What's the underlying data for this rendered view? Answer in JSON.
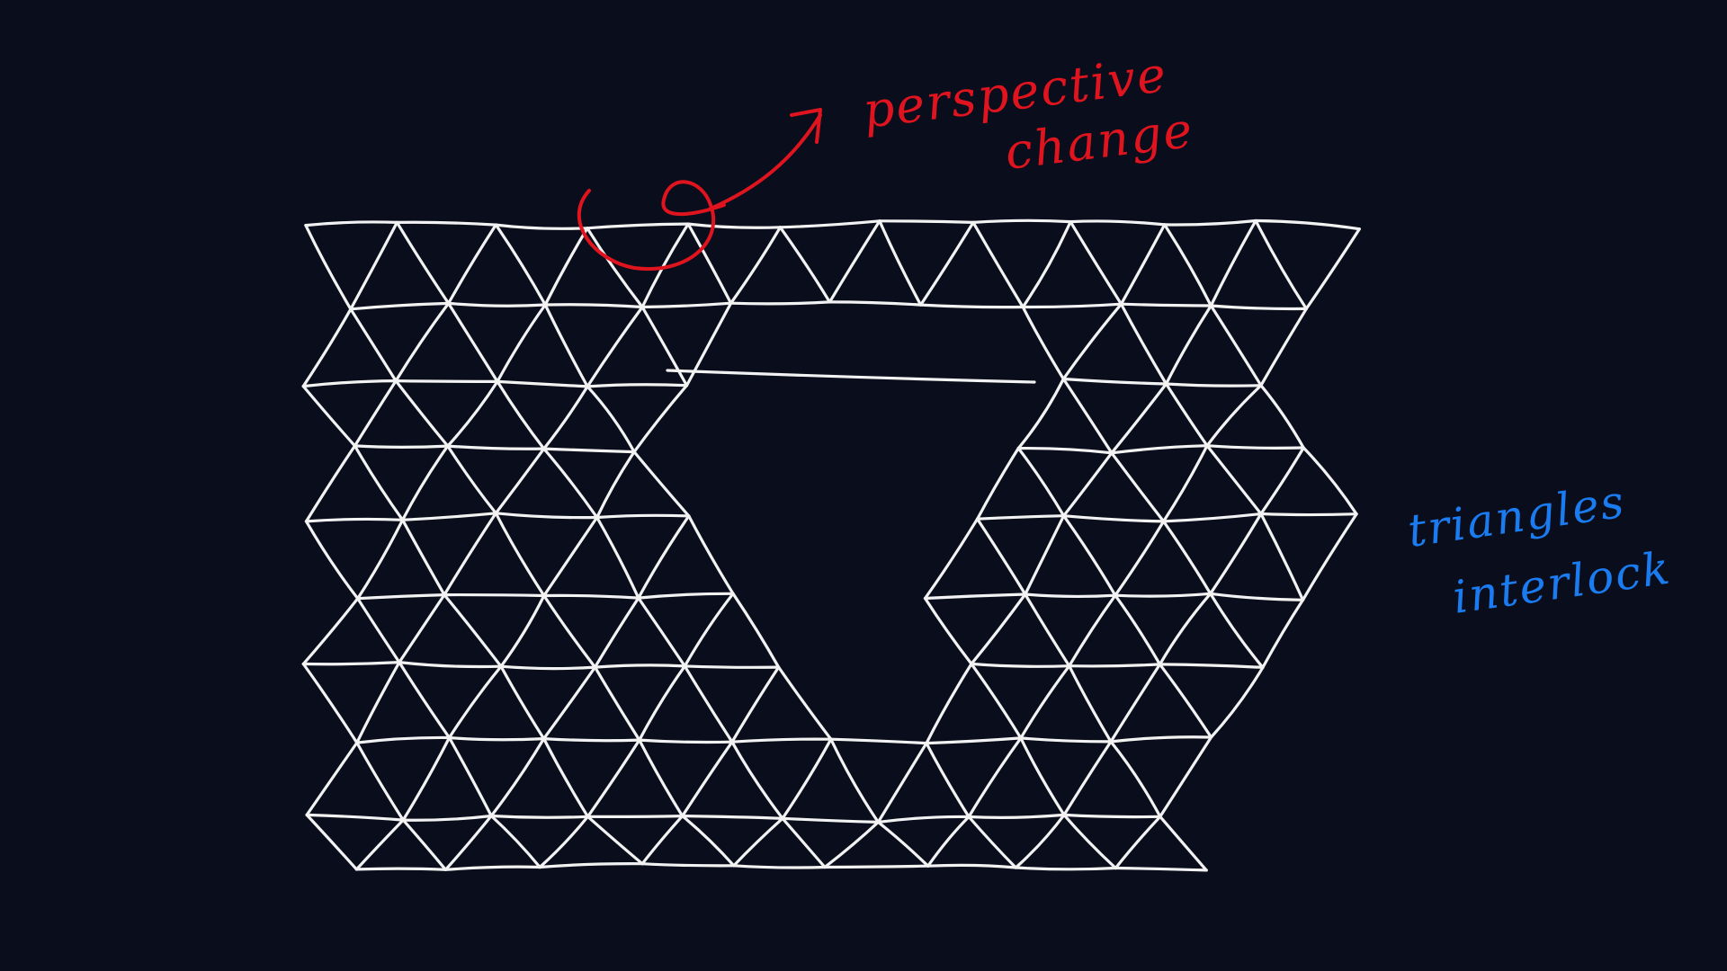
{
  "colors": {
    "background": "#0a0e1c",
    "grid_stroke": "#f2f2f2",
    "perspective_annotation": "#e0141e",
    "interlock_annotation": "#1a7cf0"
  },
  "annotations": {
    "perspective": {
      "line1": "perspective",
      "line2": "change"
    },
    "interlock": {
      "line1": "triangles",
      "line2": "interlock"
    }
  }
}
